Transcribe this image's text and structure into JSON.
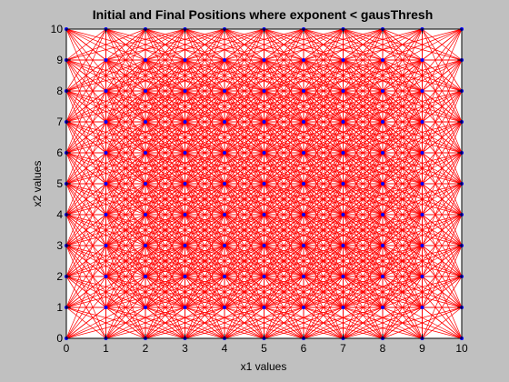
{
  "chart_data": {
    "type": "scatter",
    "title": "Initial and Final Positions where exponent < gausThresh",
    "xlabel": "x1 values",
    "ylabel": "x2 values",
    "xlim": [
      0,
      10
    ],
    "ylim": [
      0,
      10
    ],
    "xticks": [
      "0",
      "1",
      "2",
      "3",
      "4",
      "5",
      "6",
      "7",
      "8",
      "9",
      "10"
    ],
    "yticks": [
      "0",
      "1",
      "2",
      "3",
      "4",
      "5",
      "6",
      "7",
      "8",
      "9",
      "10"
    ],
    "grid": false,
    "points": {
      "x_values": [
        0,
        1,
        2,
        3,
        4,
        5,
        6,
        7,
        8,
        9,
        10
      ],
      "y_values": [
        0,
        1,
        2,
        3,
        4,
        5,
        6,
        7,
        8,
        9,
        10
      ],
      "layout": "full grid of every x/y combination"
    },
    "connections": {
      "rule": "segments between grid points whose offset is within max_step in each axis (|dx|<=3, |dy|<=3)",
      "max_step": 3
    },
    "colors": {
      "figure_background": "#c0c0c0",
      "plot_background": "#ffffff",
      "lines": "#ff0000",
      "markers": "#0000ff",
      "axes": "#000000"
    }
  }
}
